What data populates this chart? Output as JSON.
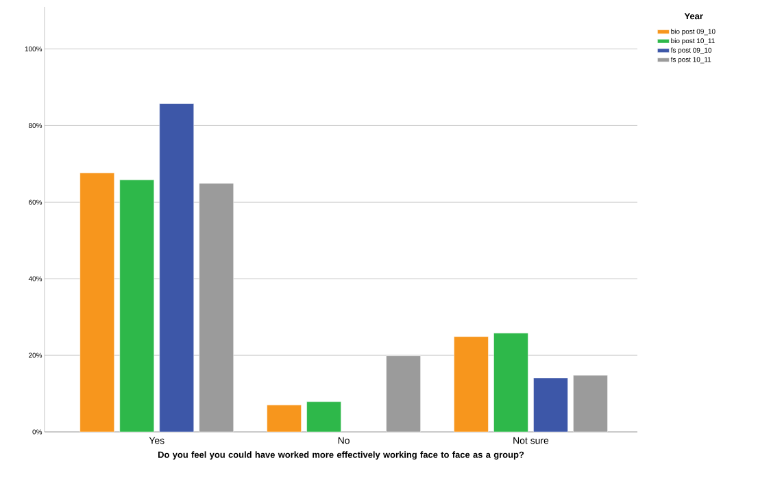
{
  "chart_data": {
    "type": "bar",
    "xlabel": "Do you feel you could have worked more effectively working face to face as a group?",
    "categories": [
      "Yes",
      "No",
      "Not sure"
    ],
    "series": [
      {
        "name": "bio post 09_10",
        "color": "#f7961d",
        "values": [
          67.6,
          7.0,
          24.9
        ]
      },
      {
        "name": "bio post 10_11",
        "color": "#2eb84a",
        "values": [
          65.8,
          7.9,
          25.8
        ]
      },
      {
        "name": "fs post 09_10",
        "color": "#3d57a8",
        "values": [
          85.7,
          null,
          14.1
        ]
      },
      {
        "name": "fs post 10_11",
        "color": "#9b9b9b",
        "values": [
          64.9,
          19.9,
          14.8
        ]
      }
    ],
    "ylim": [
      0,
      111
    ],
    "yticks": [
      {
        "value": 0,
        "label": "0%"
      },
      {
        "value": 20,
        "label": "20%"
      },
      {
        "value": 40,
        "label": "40%"
      },
      {
        "value": 60,
        "label": "60%"
      },
      {
        "value": 80,
        "label": "80%"
      },
      {
        "value": 100,
        "label": "100%"
      }
    ],
    "grid": "y",
    "legend": "top right",
    "legend_title": "Year"
  }
}
